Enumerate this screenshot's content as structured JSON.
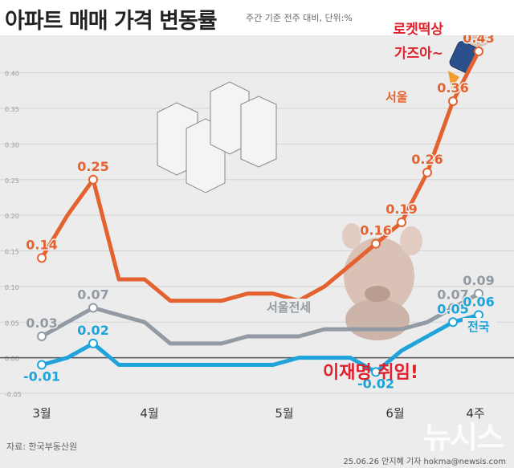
{
  "header": {
    "title": "아파트 매매 가격 변동률",
    "subtitle": "주간 기준 전주 대비, 단위:%"
  },
  "footer": {
    "source": "자료: 한국부동산원",
    "credit": "25.06.26 안지혜 기자 hokma@newsis.com",
    "watermark": "뉴시스"
  },
  "annotations": {
    "rocket_text": "로켓떡상\n가즈아~",
    "event_text": "이재명 취임!"
  },
  "colors": {
    "seoul": "#e3622f",
    "seoul_jeonse": "#929aa3",
    "national": "#1ea3da",
    "event": "#e0202a",
    "background": "#ececec"
  },
  "chart_data": {
    "type": "line",
    "x_labels": [
      "3월",
      "4월",
      "5월",
      "6월",
      "4주"
    ],
    "y_ticks": [
      "0.40",
      "0.35",
      "0.30",
      "0.25",
      "0.20",
      "0.15",
      "0.10",
      "0.05",
      "0.00",
      "-0.05"
    ],
    "ylim": [
      -0.05,
      0.43
    ],
    "grid": true,
    "series": [
      {
        "name": "서울",
        "color": "#e3622f",
        "values": [
          0.14,
          0.2,
          0.25,
          0.11,
          0.11,
          0.08,
          0.08,
          0.08,
          0.09,
          0.09,
          0.08,
          0.1,
          0.13,
          0.16,
          0.19,
          0.26,
          0.36,
          0.43
        ],
        "labels": [
          "0.14",
          null,
          "0.25",
          null,
          null,
          null,
          null,
          null,
          null,
          null,
          null,
          null,
          null,
          "0.16",
          "0.19",
          "0.26",
          "0.36",
          "0.43"
        ]
      },
      {
        "name": "서울전세",
        "color": "#929aa3",
        "values": [
          0.03,
          0.05,
          0.07,
          0.06,
          0.05,
          0.02,
          0.02,
          0.02,
          0.03,
          0.03,
          0.03,
          0.04,
          0.04,
          0.04,
          0.04,
          0.05,
          0.07,
          0.09
        ],
        "labels": [
          "0.03",
          null,
          "0.07",
          null,
          null,
          null,
          null,
          null,
          null,
          null,
          null,
          null,
          null,
          null,
          null,
          null,
          "0.07",
          "0.09"
        ]
      },
      {
        "name": "전국",
        "color": "#1ea3da",
        "values": [
          -0.01,
          0.0,
          0.02,
          -0.01,
          -0.01,
          -0.01,
          -0.01,
          -0.01,
          -0.01,
          -0.01,
          0.0,
          0.0,
          0.0,
          -0.02,
          0.01,
          0.03,
          0.05,
          0.06
        ],
        "labels": [
          "-0.01",
          null,
          "0.02",
          null,
          null,
          null,
          null,
          null,
          null,
          null,
          null,
          null,
          null,
          "-0.02",
          null,
          null,
          "0.05",
          "0.06"
        ]
      }
    ]
  }
}
